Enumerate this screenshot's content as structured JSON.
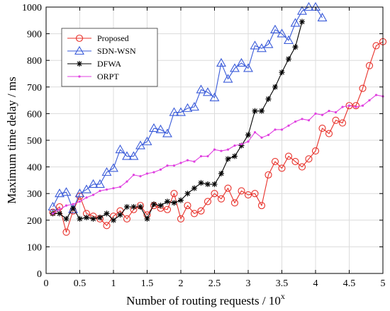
{
  "chart_data": {
    "type": "line",
    "xlabel": "Number of routing requests / 10",
    "xlabel_sup": "x",
    "ylabel": "Maximum time delay / ms",
    "xlim": [
      0,
      5
    ],
    "ylim": [
      0,
      1000
    ],
    "xticks": [
      0,
      0.5,
      1,
      1.5,
      2,
      2.5,
      3,
      3.5,
      4,
      4.5,
      5
    ],
    "xtick_labels": [
      "0",
      "0.5",
      "1",
      "1.5",
      "2",
      "2.5",
      "3",
      "3.5",
      "4",
      "4.5",
      "5"
    ],
    "yticks": [
      0,
      100,
      200,
      300,
      400,
      500,
      600,
      700,
      800,
      900,
      1000
    ],
    "ytick_labels": [
      "0",
      "100",
      "200",
      "300",
      "400",
      "500",
      "600",
      "700",
      "800",
      "900",
      "1000"
    ],
    "grid": true,
    "legend_position": "top-left",
    "series": [
      {
        "name": "Proposed",
        "color": "#e8312a",
        "marker": "circle",
        "x": [
          0.1,
          0.2,
          0.3,
          0.4,
          0.5,
          0.6,
          0.7,
          0.8,
          0.9,
          1.0,
          1.1,
          1.2,
          1.3,
          1.4,
          1.5,
          1.6,
          1.7,
          1.8,
          1.9,
          2.0,
          2.1,
          2.2,
          2.3,
          2.4,
          2.5,
          2.6,
          2.7,
          2.8,
          2.9,
          3.0,
          3.1,
          3.2,
          3.3,
          3.4,
          3.5,
          3.6,
          3.7,
          3.8,
          3.9,
          4.0,
          4.1,
          4.2,
          4.3,
          4.4,
          4.5,
          4.6,
          4.7,
          4.8,
          4.9,
          5.0
        ],
        "values": [
          230,
          250,
          155,
          235,
          290,
          225,
          215,
          205,
          180,
          215,
          235,
          205,
          240,
          255,
          220,
          255,
          245,
          240,
          300,
          205,
          255,
          225,
          235,
          270,
          300,
          280,
          320,
          265,
          310,
          295,
          300,
          255,
          370,
          420,
          395,
          440,
          420,
          400,
          430,
          460,
          545,
          525,
          575,
          565,
          630,
          630,
          695,
          780,
          855,
          870
        ]
      },
      {
        "name": "SDN-WSN",
        "color": "#3a5bd9",
        "marker": "triangle",
        "x": [
          0.1,
          0.2,
          0.3,
          0.4,
          0.5,
          0.6,
          0.7,
          0.8,
          0.9,
          1.0,
          1.1,
          1.2,
          1.3,
          1.4,
          1.5,
          1.6,
          1.7,
          1.8,
          1.9,
          2.0,
          2.1,
          2.2,
          2.3,
          2.4,
          2.5,
          2.6,
          2.7,
          2.8,
          2.9,
          3.0,
          3.1,
          3.2,
          3.3,
          3.4,
          3.5,
          3.6,
          3.7,
          3.8,
          3.9,
          4.0,
          4.1
        ],
        "values": [
          250,
          300,
          305,
          240,
          300,
          315,
          335,
          335,
          380,
          395,
          465,
          440,
          440,
          480,
          495,
          545,
          540,
          525,
          605,
          605,
          620,
          625,
          690,
          680,
          660,
          790,
          730,
          770,
          790,
          770,
          855,
          845,
          860,
          915,
          900,
          875,
          940,
          985,
          1010,
          1010,
          960
        ]
      },
      {
        "name": "DFWA",
        "color": "#000000",
        "marker": "star",
        "x": [
          0.1,
          0.2,
          0.3,
          0.4,
          0.5,
          0.6,
          0.7,
          0.8,
          0.9,
          1.0,
          1.1,
          1.2,
          1.3,
          1.4,
          1.5,
          1.6,
          1.7,
          1.8,
          1.9,
          2.0,
          2.1,
          2.2,
          2.3,
          2.4,
          2.5,
          2.6,
          2.7,
          2.8,
          2.9,
          3.0,
          3.1,
          3.2,
          3.3,
          3.4,
          3.5,
          3.6,
          3.7,
          3.8
        ],
        "values": [
          225,
          225,
          205,
          245,
          205,
          210,
          205,
          210,
          225,
          200,
          220,
          250,
          250,
          250,
          205,
          260,
          255,
          270,
          265,
          275,
          300,
          320,
          340,
          335,
          335,
          375,
          430,
          440,
          480,
          520,
          610,
          610,
          655,
          700,
          755,
          805,
          850,
          945
        ]
      },
      {
        "name": "ORPT",
        "color": "#e040e0",
        "marker": "dot",
        "x": [
          0.1,
          0.2,
          0.3,
          0.4,
          0.5,
          0.6,
          0.7,
          0.8,
          0.9,
          1.0,
          1.1,
          1.2,
          1.3,
          1.4,
          1.5,
          1.6,
          1.7,
          1.8,
          1.9,
          2.0,
          2.1,
          2.2,
          2.3,
          2.4,
          2.5,
          2.6,
          2.7,
          2.8,
          2.9,
          3.0,
          3.1,
          3.2,
          3.3,
          3.4,
          3.5,
          3.6,
          3.7,
          3.8,
          3.9,
          4.0,
          4.1,
          4.2,
          4.3,
          4.4,
          4.5,
          4.6,
          4.7,
          4.8,
          4.9,
          5.0
        ],
        "values": [
          225,
          240,
          255,
          260,
          270,
          285,
          295,
          310,
          315,
          320,
          325,
          345,
          370,
          365,
          375,
          380,
          390,
          405,
          405,
          415,
          425,
          420,
          440,
          440,
          465,
          460,
          465,
          480,
          485,
          495,
          530,
          510,
          520,
          540,
          540,
          555,
          570,
          580,
          575,
          600,
          595,
          610,
          605,
          625,
          630,
          625,
          630,
          650,
          670,
          665
        ]
      }
    ]
  }
}
